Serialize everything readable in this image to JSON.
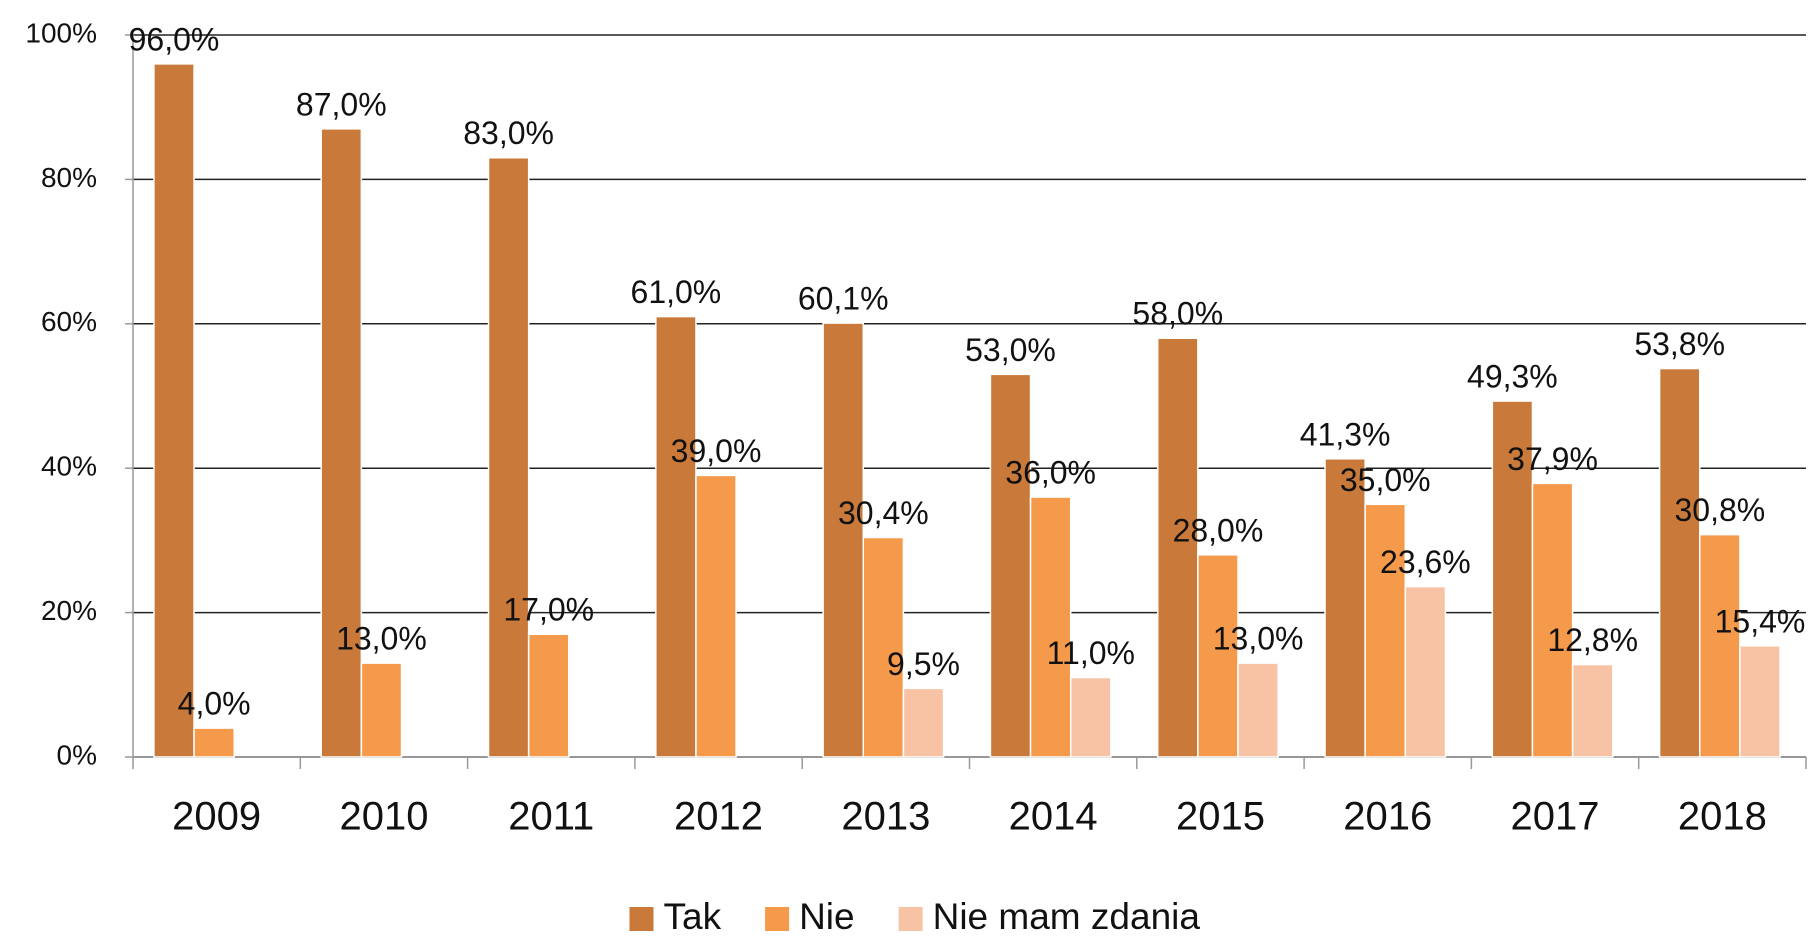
{
  "chart_data": {
    "type": "bar",
    "categories": [
      "2009",
      "2010",
      "2011",
      "2012",
      "2013",
      "2014",
      "2015",
      "2016",
      "2017",
      "2018"
    ],
    "series": [
      {
        "name": "Tak",
        "color": "#c97a3a",
        "values": [
          96,
          87,
          83,
          61,
          60.1,
          53,
          58,
          41.3,
          49.3,
          53.8
        ],
        "value_labels": [
          "96,0%",
          "87,0%",
          "83,0%",
          "61,0%",
          "60,1%",
          "53,0%",
          "58,0%",
          "41,3%",
          "49,3%",
          "53,8%"
        ]
      },
      {
        "name": "Nie",
        "color": "#f5994a",
        "values": [
          4,
          13,
          17,
          39,
          30.4,
          36,
          28,
          35,
          37.9,
          30.8
        ],
        "value_labels": [
          "4,0%",
          "13,0%",
          "17,0%",
          "39,0%",
          "30,4%",
          "36,0%",
          "28,0%",
          "35,0%",
          "37,9%",
          "30,8%"
        ]
      },
      {
        "name": "Nie mam zdania",
        "color": "#f8c2a4",
        "values": [
          null,
          null,
          null,
          null,
          9.5,
          11,
          13,
          23.6,
          12.8,
          15.4
        ],
        "value_labels": [
          null,
          null,
          null,
          null,
          "9,5%",
          "11,0%",
          "13,0%",
          "23,6%",
          "12,8%",
          "15,4%"
        ]
      }
    ],
    "ylim": [
      0,
      100
    ],
    "yticks": [
      {
        "value": 0,
        "label": "0%"
      },
      {
        "value": 20,
        "label": "20%"
      },
      {
        "value": 40,
        "label": "40%"
      },
      {
        "value": 60,
        "label": "60%"
      },
      {
        "value": 80,
        "label": "80%"
      },
      {
        "value": 100,
        "label": "100%"
      }
    ],
    "grid": true,
    "legend": "bottom"
  }
}
